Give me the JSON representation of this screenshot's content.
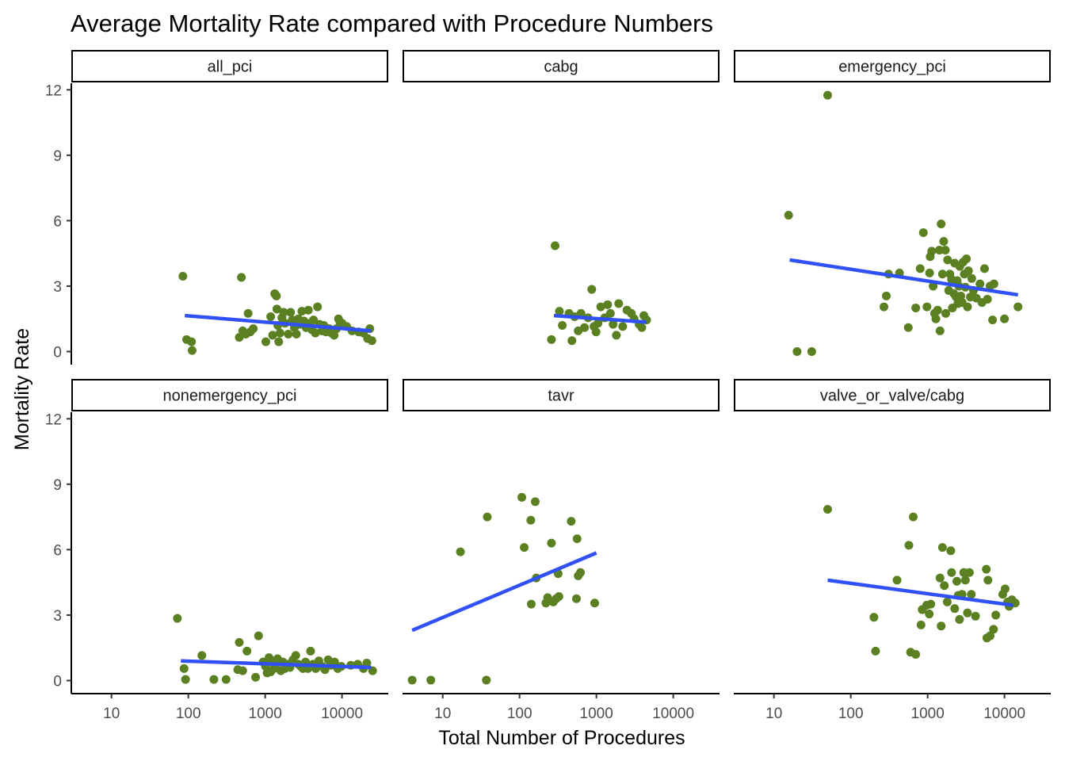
{
  "chart_data": {
    "type": "scatter",
    "title": "Average Mortality Rate compared with Procedure Numbers",
    "xlabel": "Total Number of Procedures",
    "ylabel": "Mortality Rate",
    "x_scale": "log10",
    "xlim": [
      3,
      40000
    ],
    "ylim": [
      -0.6,
      12.3
    ],
    "x_ticks": [
      10,
      100,
      1000,
      10000
    ],
    "x_tick_labels": [
      "10",
      "100",
      "1000",
      "10000"
    ],
    "y_ticks": [
      0,
      3,
      6,
      9,
      12
    ],
    "y_tick_labels": [
      "0",
      "3",
      "6",
      "9",
      "12"
    ],
    "grid": false,
    "legend": "none",
    "point_color": "#5b8022",
    "line_color": "#3050f8",
    "panels": [
      {
        "name": "all_pci",
        "trend": [
          [
            90,
            1.65
          ],
          [
            24000,
            0.95
          ]
        ],
        "points": [
          [
            85,
            3.45
          ],
          [
            95,
            0.55
          ],
          [
            110,
            0.45
          ],
          [
            112,
            0.05
          ],
          [
            490,
            3.4
          ],
          [
            460,
            0.65
          ],
          [
            510,
            0.95
          ],
          [
            560,
            0.8
          ],
          [
            600,
            1.75
          ],
          [
            640,
            0.9
          ],
          [
            700,
            1.05
          ],
          [
            1020,
            0.45
          ],
          [
            1180,
            1.6
          ],
          [
            1250,
            0.75
          ],
          [
            1330,
            2.65
          ],
          [
            1400,
            2.55
          ],
          [
            1420,
            1.95
          ],
          [
            1460,
            1.2
          ],
          [
            1500,
            0.45
          ],
          [
            1560,
            0.85
          ],
          [
            1650,
            1.55
          ],
          [
            1740,
            1.8
          ],
          [
            1820,
            1.3
          ],
          [
            2000,
            0.8
          ],
          [
            2140,
            1.8
          ],
          [
            2250,
            1.45
          ],
          [
            2400,
            1.1
          ],
          [
            2550,
            0.8
          ],
          [
            2700,
            1.5
          ],
          [
            2850,
            1.25
          ],
          [
            3000,
            1.85
          ],
          [
            3200,
            1.4
          ],
          [
            3400,
            1.1
          ],
          [
            3650,
            1.9
          ],
          [
            3850,
            1.3
          ],
          [
            4050,
            1.0
          ],
          [
            4250,
            1.45
          ],
          [
            4500,
            0.85
          ],
          [
            4800,
            2.05
          ],
          [
            5100,
            1.25
          ],
          [
            5500,
            0.95
          ],
          [
            5800,
            1.2
          ],
          [
            6200,
            0.9
          ],
          [
            6800,
            1.05
          ],
          [
            7300,
            0.85
          ],
          [
            7900,
            0.75
          ],
          [
            8500,
            1.05
          ],
          [
            9000,
            1.5
          ],
          [
            9400,
            1.35
          ],
          [
            10000,
            1.3
          ],
          [
            11500,
            1.15
          ],
          [
            13500,
            0.95
          ],
          [
            16500,
            0.9
          ],
          [
            19000,
            0.85
          ],
          [
            21500,
            0.6
          ],
          [
            23000,
            1.05
          ],
          [
            24500,
            0.5
          ]
        ]
      },
      {
        "name": "cabg",
        "trend": [
          [
            280,
            1.65
          ],
          [
            4500,
            1.35
          ]
        ],
        "points": [
          [
            260,
            0.55
          ],
          [
            290,
            4.85
          ],
          [
            330,
            1.85
          ],
          [
            360,
            1.2
          ],
          [
            440,
            1.75
          ],
          [
            480,
            0.5
          ],
          [
            520,
            1.6
          ],
          [
            580,
            0.95
          ],
          [
            630,
            1.75
          ],
          [
            700,
            1.1
          ],
          [
            780,
            1.55
          ],
          [
            870,
            2.85
          ],
          [
            930,
            1.15
          ],
          [
            990,
            0.9
          ],
          [
            1050,
            1.3
          ],
          [
            1140,
            2.05
          ],
          [
            1280,
            1.55
          ],
          [
            1400,
            2.15
          ],
          [
            1520,
            1.75
          ],
          [
            1650,
            1.25
          ],
          [
            1820,
            0.75
          ],
          [
            1950,
            2.2
          ],
          [
            2200,
            1.15
          ],
          [
            2500,
            1.9
          ],
          [
            2850,
            1.75
          ],
          [
            3100,
            1.5
          ],
          [
            3600,
            1.25
          ],
          [
            3900,
            1.1
          ],
          [
            4150,
            1.65
          ],
          [
            4500,
            1.45
          ]
        ]
      },
      {
        "name": "emergency_pci",
        "trend": [
          [
            16,
            4.2
          ],
          [
            15000,
            2.6
          ]
        ],
        "points": [
          [
            15.5,
            6.25
          ],
          [
            20,
            0.0
          ],
          [
            31,
            0.0
          ],
          [
            50,
            11.75
          ],
          [
            270,
            2.05
          ],
          [
            290,
            2.55
          ],
          [
            310,
            3.55
          ],
          [
            430,
            3.6
          ],
          [
            560,
            1.1
          ],
          [
            700,
            2.0
          ],
          [
            800,
            3.8
          ],
          [
            880,
            5.45
          ],
          [
            980,
            2.05
          ],
          [
            1060,
            3.6
          ],
          [
            1080,
            4.35
          ],
          [
            1130,
            4.6
          ],
          [
            1180,
            3.0
          ],
          [
            1230,
            1.75
          ],
          [
            1280,
            1.5
          ],
          [
            1350,
            1.9
          ],
          [
            1420,
            4.65
          ],
          [
            1450,
            0.95
          ],
          [
            1500,
            5.85
          ],
          [
            1560,
            3.55
          ],
          [
            1620,
            5.05
          ],
          [
            1700,
            4.65
          ],
          [
            1720,
            1.75
          ],
          [
            1820,
            4.2
          ],
          [
            1880,
            2.8
          ],
          [
            1950,
            3.55
          ],
          [
            2050,
            3.3
          ],
          [
            2100,
            2.0
          ],
          [
            2200,
            2.65
          ],
          [
            2250,
            4.05
          ],
          [
            2350,
            2.5
          ],
          [
            2420,
            3.25
          ],
          [
            2480,
            2.2
          ],
          [
            2550,
            3.0
          ],
          [
            2620,
            3.9
          ],
          [
            2700,
            2.55
          ],
          [
            2820,
            2.25
          ],
          [
            2900,
            4.1
          ],
          [
            3000,
            3.55
          ],
          [
            3100,
            2.95
          ],
          [
            3200,
            4.25
          ],
          [
            3300,
            2.05
          ],
          [
            3400,
            3.7
          ],
          [
            3600,
            2.5
          ],
          [
            3750,
            3.35
          ],
          [
            3950,
            2.8
          ],
          [
            4300,
            2.45
          ],
          [
            4800,
            3.1
          ],
          [
            5100,
            2.25
          ],
          [
            5500,
            3.8
          ],
          [
            6000,
            2.4
          ],
          [
            6500,
            3.0
          ],
          [
            7000,
            1.45
          ],
          [
            7300,
            3.1
          ],
          [
            10000,
            1.5
          ],
          [
            15000,
            2.05
          ]
        ]
      },
      {
        "name": "nonemergency_pci",
        "trend": [
          [
            80,
            0.9
          ],
          [
            24000,
            0.6
          ]
        ],
        "points": [
          [
            72,
            2.85
          ],
          [
            88,
            0.55
          ],
          [
            92,
            0.05
          ],
          [
            150,
            1.15
          ],
          [
            215,
            0.05
          ],
          [
            310,
            0.05
          ],
          [
            440,
            0.5
          ],
          [
            460,
            1.75
          ],
          [
            510,
            0.45
          ],
          [
            580,
            1.35
          ],
          [
            750,
            0.15
          ],
          [
            820,
            2.05
          ],
          [
            940,
            0.85
          ],
          [
            1010,
            0.65
          ],
          [
            1060,
            0.35
          ],
          [
            1120,
            1.05
          ],
          [
            1180,
            0.4
          ],
          [
            1240,
            0.9
          ],
          [
            1300,
            0.55
          ],
          [
            1380,
            0.75
          ],
          [
            1450,
            1.0
          ],
          [
            1600,
            0.45
          ],
          [
            1700,
            0.85
          ],
          [
            1800,
            0.55
          ],
          [
            1950,
            0.75
          ],
          [
            2100,
            0.6
          ],
          [
            2300,
            0.95
          ],
          [
            2500,
            1.15
          ],
          [
            2700,
            0.75
          ],
          [
            2900,
            0.65
          ],
          [
            3100,
            0.55
          ],
          [
            3350,
            0.85
          ],
          [
            3600,
            0.55
          ],
          [
            3900,
            1.35
          ],
          [
            4200,
            0.75
          ],
          [
            4550,
            0.55
          ],
          [
            5000,
            0.9
          ],
          [
            5500,
            0.65
          ],
          [
            6000,
            0.5
          ],
          [
            6600,
            0.95
          ],
          [
            7200,
            0.7
          ],
          [
            8000,
            0.85
          ],
          [
            8800,
            0.55
          ],
          [
            9800,
            0.65
          ],
          [
            13000,
            0.7
          ],
          [
            16000,
            0.75
          ],
          [
            19000,
            0.55
          ],
          [
            21000,
            0.8
          ],
          [
            25000,
            0.45
          ]
        ]
      },
      {
        "name": "tavr",
        "trend": [
          [
            4,
            2.3
          ],
          [
            1000,
            5.85
          ]
        ],
        "points": [
          [
            4,
            0.02
          ],
          [
            7,
            0.02
          ],
          [
            17,
            5.9
          ],
          [
            37,
            0.02
          ],
          [
            38,
            7.5
          ],
          [
            107,
            8.4
          ],
          [
            115,
            6.1
          ],
          [
            140,
            7.35
          ],
          [
            142,
            3.5
          ],
          [
            160,
            8.2
          ],
          [
            165,
            4.7
          ],
          [
            220,
            3.55
          ],
          [
            232,
            3.8
          ],
          [
            260,
            6.3
          ],
          [
            275,
            3.6
          ],
          [
            300,
            3.75
          ],
          [
            325,
            3.85
          ],
          [
            318,
            4.9
          ],
          [
            470,
            7.3
          ],
          [
            550,
            3.75
          ],
          [
            560,
            6.5
          ],
          [
            580,
            4.8
          ],
          [
            620,
            4.95
          ],
          [
            950,
            3.55
          ]
        ]
      },
      {
        "name": "valve_or_valve/cabg",
        "trend": [
          [
            50,
            4.6
          ],
          [
            13000,
            3.45
          ]
        ],
        "points": [
          [
            50,
            7.85
          ],
          [
            200,
            2.9
          ],
          [
            210,
            1.35
          ],
          [
            400,
            4.6
          ],
          [
            570,
            6.2
          ],
          [
            600,
            1.3
          ],
          [
            650,
            7.5
          ],
          [
            700,
            1.2
          ],
          [
            820,
            2.55
          ],
          [
            850,
            3.25
          ],
          [
            970,
            3.45
          ],
          [
            1050,
            3.05
          ],
          [
            1100,
            3.5
          ],
          [
            1450,
            4.7
          ],
          [
            1500,
            2.5
          ],
          [
            1560,
            6.1
          ],
          [
            1650,
            4.35
          ],
          [
            1800,
            3.6
          ],
          [
            2000,
            5.95
          ],
          [
            2050,
            4.95
          ],
          [
            2250,
            3.3
          ],
          [
            2400,
            4.55
          ],
          [
            2500,
            3.9
          ],
          [
            2600,
            2.8
          ],
          [
            2800,
            3.95
          ],
          [
            2950,
            4.95
          ],
          [
            3100,
            4.6
          ],
          [
            3300,
            3.1
          ],
          [
            3500,
            4.95
          ],
          [
            3700,
            3.95
          ],
          [
            4200,
            2.95
          ],
          [
            5800,
            5.1
          ],
          [
            5900,
            1.95
          ],
          [
            6100,
            4.6
          ],
          [
            6500,
            2.05
          ],
          [
            7200,
            2.35
          ],
          [
            7700,
            3.0
          ],
          [
            9500,
            3.95
          ],
          [
            10200,
            4.2
          ],
          [
            11000,
            3.6
          ],
          [
            11500,
            3.4
          ],
          [
            12500,
            3.7
          ],
          [
            13800,
            3.55
          ]
        ]
      }
    ]
  }
}
